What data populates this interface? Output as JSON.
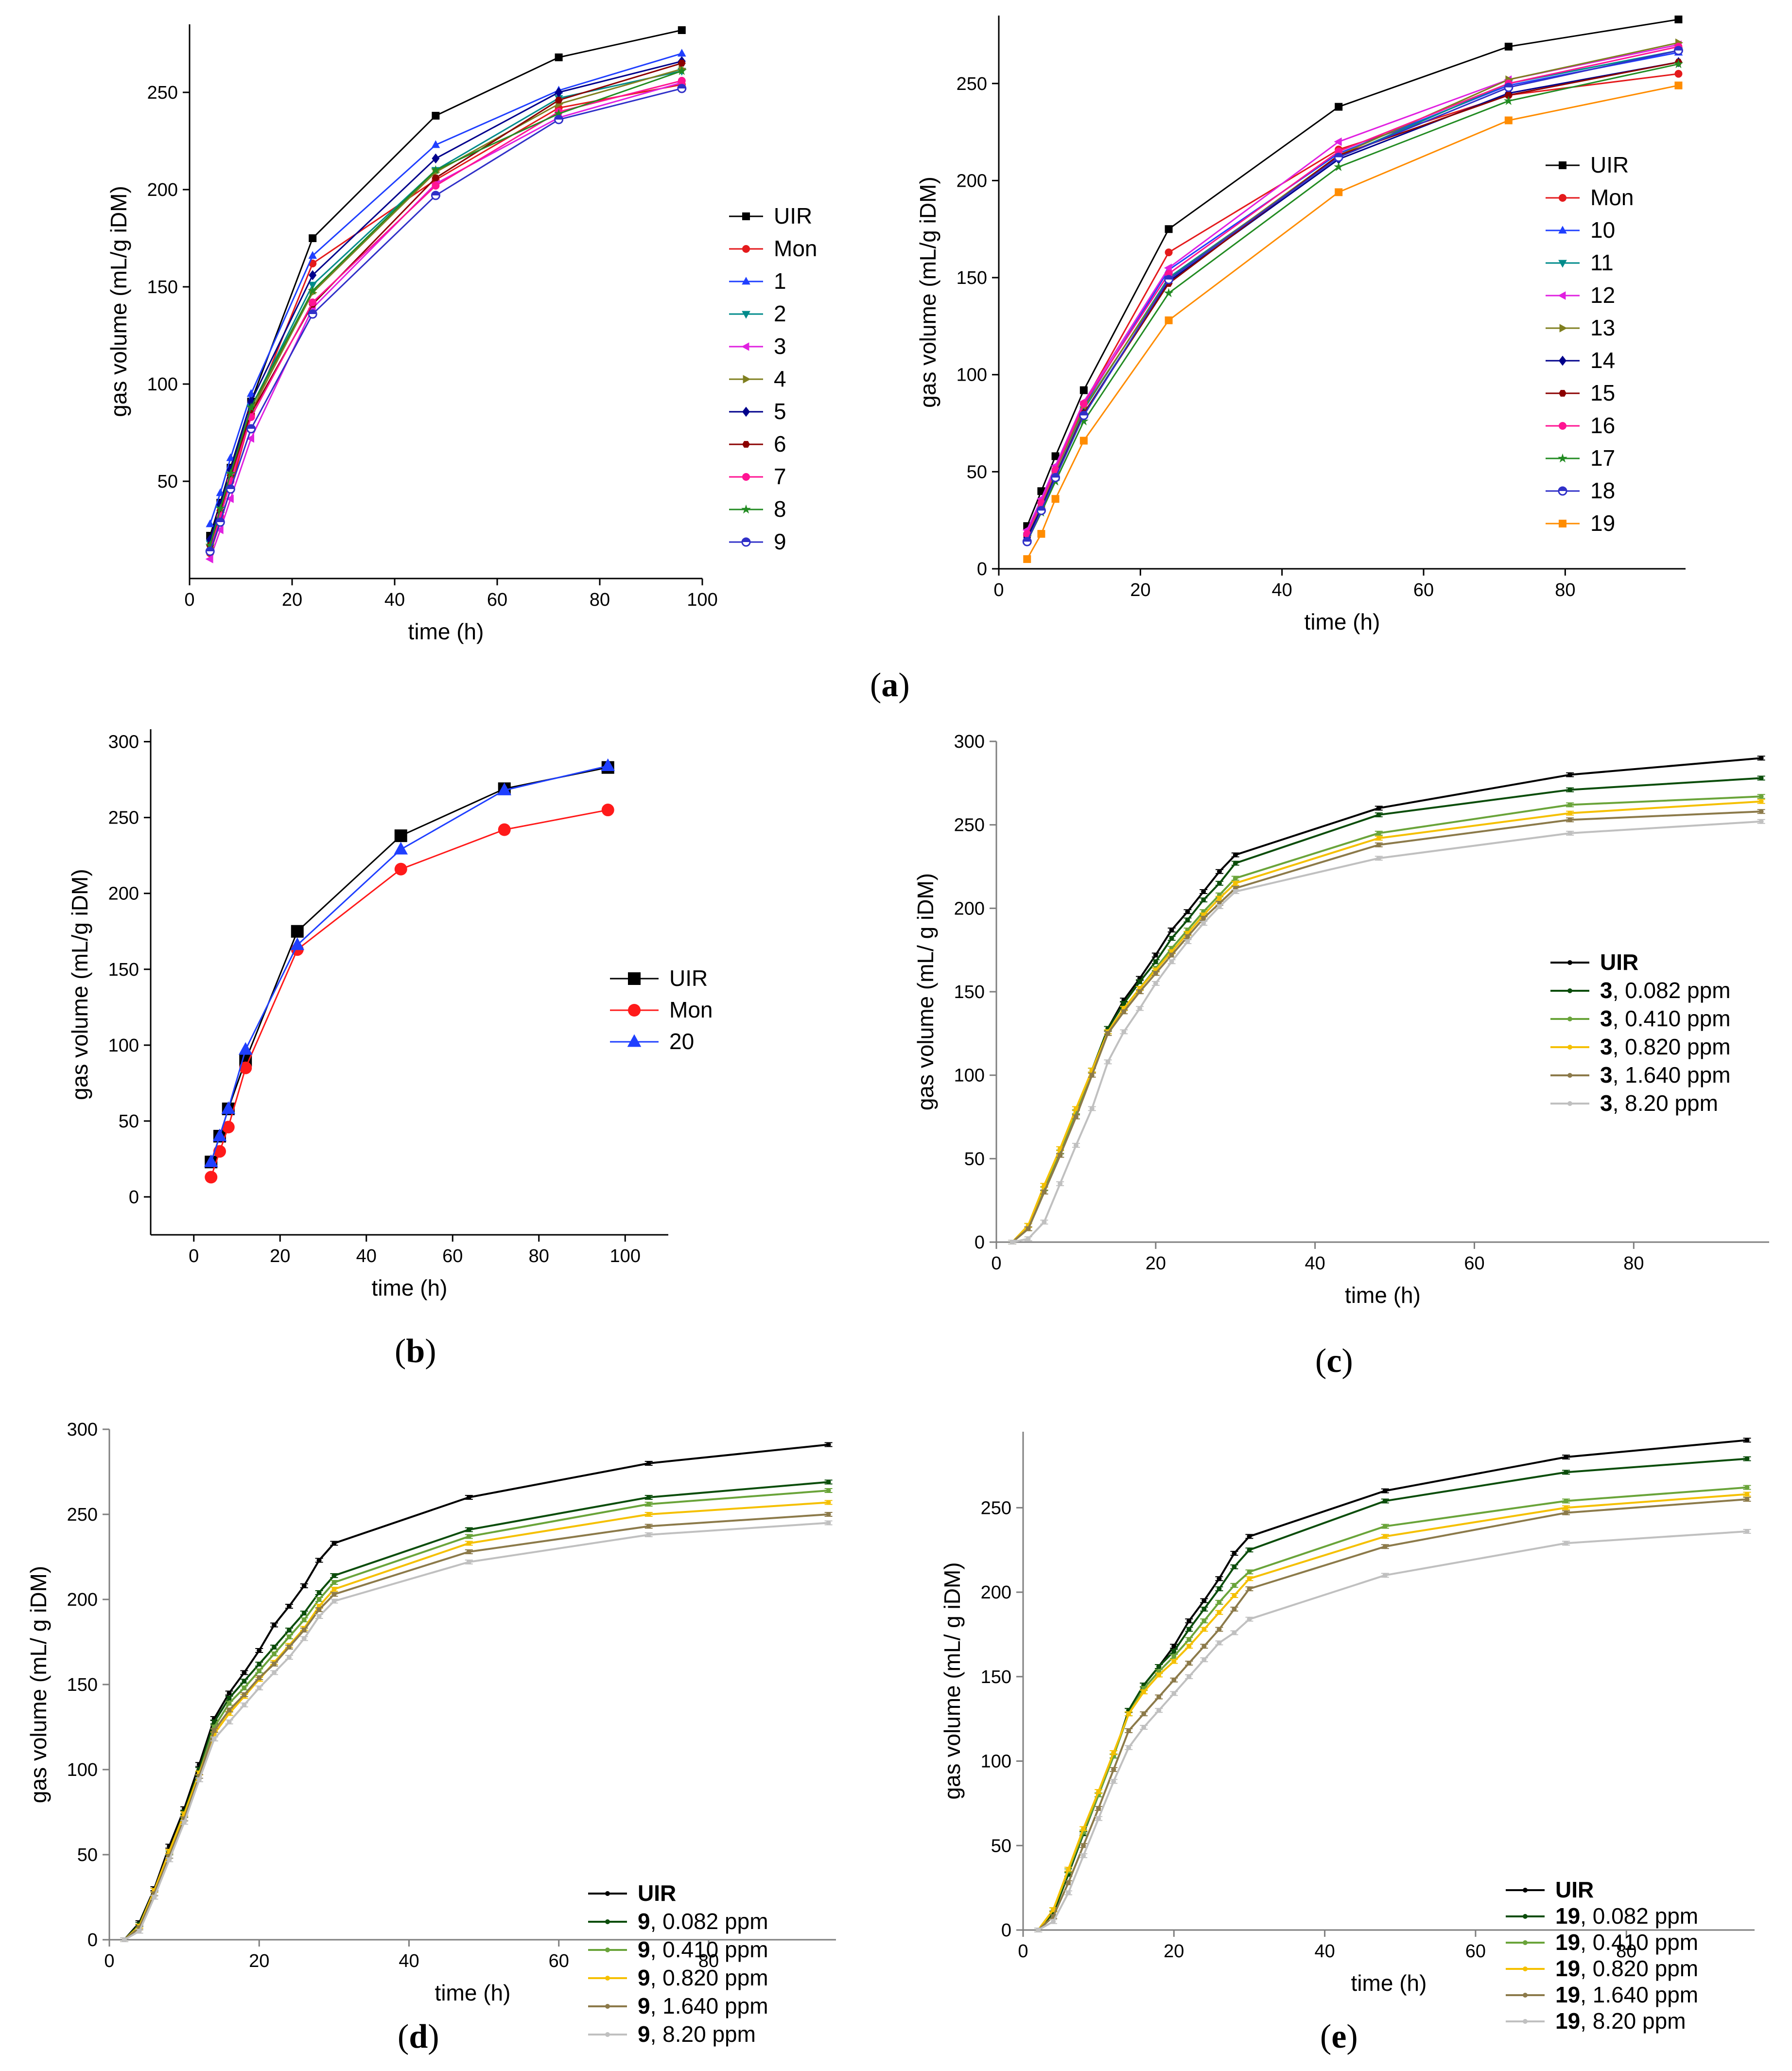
{
  "panel_labels": {
    "a": "a",
    "b": "b",
    "c": "c",
    "d": "d",
    "e": "e"
  },
  "chart_data": [
    {
      "id": "a_left",
      "panel": "a",
      "type": "line",
      "xlabel": "time (h)",
      "ylabel": "gas volume (mL/g iDM)",
      "xlim": [
        0,
        100
      ],
      "ylim": [
        0,
        285
      ],
      "xticks": [
        0,
        20,
        40,
        60,
        80,
        100
      ],
      "yticks": [
        50,
        100,
        150,
        200,
        250
      ],
      "x": [
        4,
        6,
        8,
        12,
        24,
        48,
        72,
        96
      ],
      "series": [
        {
          "name": "UIR",
          "color": "#000000",
          "marker": "square",
          "values": [
            22,
            39,
            57,
            91,
            175,
            238,
            268,
            282
          ]
        },
        {
          "name": "Mon",
          "color": "#e41a1c",
          "marker": "circle",
          "values": [
            13,
            29,
            46,
            84,
            162,
            205,
            242,
            254
          ]
        },
        {
          "name": "1",
          "color": "#1f3fff",
          "marker": "triangle-up",
          "values": [
            28,
            44,
            62,
            95,
            166,
            223,
            251,
            270
          ]
        },
        {
          "name": "2",
          "color": "#008b8b",
          "marker": "triangle-down",
          "values": [
            18,
            36,
            53,
            88,
            151,
            210,
            247,
            261
          ]
        },
        {
          "name": "3",
          "color": "#e020e0",
          "marker": "triangle-left",
          "values": [
            10,
            25,
            41,
            72,
            139,
            203,
            237,
            255
          ]
        },
        {
          "name": "4",
          "color": "#7f7f1f",
          "marker": "triangle-right",
          "values": [
            16,
            34,
            52,
            86,
            147,
            209,
            244,
            262
          ]
        },
        {
          "name": "5",
          "color": "#00008b",
          "marker": "diamond",
          "values": [
            20,
            38,
            56,
            91,
            156,
            216,
            250,
            266
          ]
        },
        {
          "name": "6",
          "color": "#8b0000",
          "marker": "hexagon",
          "values": [
            17,
            35,
            53,
            85,
            141,
            206,
            246,
            265
          ]
        },
        {
          "name": "7",
          "color": "#ff1493",
          "marker": "circle",
          "values": [
            14,
            32,
            50,
            83,
            142,
            202,
            240,
            256
          ]
        },
        {
          "name": "8",
          "color": "#228b22",
          "marker": "star",
          "values": [
            17,
            36,
            54,
            88,
            148,
            210,
            239,
            261
          ]
        },
        {
          "name": "9",
          "color": "#3030c8",
          "marker": "half-circle",
          "values": [
            14,
            29,
            46,
            77,
            136,
            197,
            236,
            252
          ]
        }
      ]
    },
    {
      "id": "a_right",
      "panel": "a",
      "type": "line",
      "xlabel": "time (h)",
      "ylabel": "gas volume (mL/g iDM)",
      "xlim": [
        0,
        97
      ],
      "ylim": [
        0,
        285
      ],
      "xticks": [
        0,
        20,
        40,
        60,
        80
      ],
      "yticks": [
        0,
        50,
        100,
        150,
        200,
        250
      ],
      "x": [
        4,
        6,
        8,
        12,
        24,
        48,
        72,
        96
      ],
      "series": [
        {
          "name": "UIR",
          "color": "#000000",
          "marker": "square",
          "values": [
            22,
            40,
            58,
            92,
            175,
            238,
            269,
            283
          ]
        },
        {
          "name": "Mon",
          "color": "#e41a1c",
          "marker": "circle",
          "values": [
            17,
            32,
            50,
            85,
            163,
            216,
            244,
            255
          ]
        },
        {
          "name": "10",
          "color": "#1f3fff",
          "marker": "triangle-up",
          "values": [
            19,
            35,
            52,
            84,
            154,
            214,
            249,
            266
          ]
        },
        {
          "name": "11",
          "color": "#008b8b",
          "marker": "triangle-down",
          "values": [
            17,
            33,
            50,
            82,
            150,
            212,
            250,
            267
          ]
        },
        {
          "name": "12",
          "color": "#e020e0",
          "marker": "triangle-left",
          "values": [
            20,
            36,
            53,
            86,
            155,
            220,
            252,
            270
          ]
        },
        {
          "name": "13",
          "color": "#7f7f1f",
          "marker": "triangle-right",
          "values": [
            17,
            33,
            50,
            83,
            149,
            213,
            252,
            271
          ]
        },
        {
          "name": "14",
          "color": "#00008b",
          "marker": "diamond",
          "values": [
            16,
            31,
            48,
            80,
            148,
            211,
            245,
            261
          ]
        },
        {
          "name": "15",
          "color": "#8b0000",
          "marker": "hexagon",
          "values": [
            14,
            30,
            47,
            80,
            147,
            213,
            244,
            261
          ]
        },
        {
          "name": "16",
          "color": "#ff1493",
          "marker": "circle",
          "values": [
            18,
            34,
            51,
            85,
            152,
            215,
            250,
            269
          ]
        },
        {
          "name": "17",
          "color": "#228b22",
          "marker": "star",
          "values": [
            14,
            29,
            45,
            76,
            142,
            207,
            241,
            260
          ]
        },
        {
          "name": "18",
          "color": "#3030c8",
          "marker": "half-circle",
          "values": [
            14,
            30,
            47,
            79,
            149,
            212,
            248,
            267
          ]
        },
        {
          "name": "19",
          "color": "#ff8c00",
          "marker": "square",
          "values": [
            5,
            18,
            36,
            66,
            128,
            194,
            231,
            249
          ]
        }
      ]
    },
    {
      "id": "b",
      "panel": "b",
      "type": "line",
      "xlabel": "time (h)",
      "ylabel": "gas volume (mL/g iDM)",
      "xlim": [
        -10,
        110
      ],
      "ylim": [
        -25,
        305
      ],
      "xticks": [
        0,
        20,
        40,
        60,
        80,
        100
      ],
      "yticks": [
        0,
        50,
        100,
        150,
        200,
        250,
        300
      ],
      "x": [
        4,
        6,
        8,
        12,
        24,
        48,
        72,
        96
      ],
      "series": [
        {
          "name": "UIR",
          "color": "#000000",
          "marker": "square",
          "values": [
            23,
            40,
            58,
            90,
            175,
            238,
            269,
            283
          ]
        },
        {
          "name": "Mon",
          "color": "#ff1a1a",
          "marker": "circle",
          "values": [
            13,
            30,
            46,
            85,
            163,
            216,
            242,
            255
          ]
        },
        {
          "name": "20",
          "color": "#1f3fff",
          "marker": "triangle-up",
          "values": [
            23,
            40,
            58,
            97,
            166,
            229,
            268,
            284
          ]
        }
      ]
    },
    {
      "id": "c",
      "panel": "c",
      "type": "line",
      "xlabel": "time (h)",
      "ylabel": "gas volume (mL/ g iDM)",
      "xlim": [
        0,
        97
      ],
      "ylim": [
        0,
        300
      ],
      "xticks": [
        0,
        20,
        40,
        60,
        80
      ],
      "yticks": [
        0,
        50,
        100,
        150,
        200,
        250,
        300
      ],
      "x": [
        2,
        4,
        6,
        8,
        10,
        12,
        14,
        16,
        18,
        20,
        22,
        24,
        26,
        28,
        30,
        48,
        72,
        96
      ],
      "series": [
        {
          "name": "UIR",
          "bold": "UIR",
          "rest": "",
          "color": "#000000",
          "values": [
            0,
            8,
            30,
            52,
            78,
            103,
            128,
            145,
            158,
            172,
            187,
            198,
            210,
            222,
            232,
            260,
            280,
            290
          ]
        },
        {
          "name": "3, 0.082 ppm",
          "bold": "3",
          "rest": ", 0.082 ppm",
          "color": "#0b4d0b",
          "values": [
            0,
            8,
            30,
            52,
            78,
            103,
            128,
            143,
            156,
            168,
            182,
            193,
            205,
            215,
            227,
            256,
            271,
            278
          ]
        },
        {
          "name": "3, 0.410 ppm",
          "bold": "3",
          "rest": ", 0.410 ppm",
          "color": "#6aa43a",
          "values": [
            0,
            10,
            32,
            54,
            78,
            103,
            126,
            140,
            152,
            164,
            176,
            187,
            198,
            208,
            218,
            245,
            262,
            267
          ]
        },
        {
          "name": "3, 0.820 ppm",
          "bold": "3",
          "rest": ", 0.820 ppm",
          "color": "#f5c000",
          "values": [
            0,
            10,
            34,
            56,
            80,
            103,
            126,
            140,
            152,
            163,
            174,
            185,
            196,
            206,
            215,
            242,
            257,
            264
          ]
        },
        {
          "name": "3, 1.640 ppm",
          "bold": "3",
          "rest": ", 1.640 ppm",
          "color": "#8c7a4a",
          "values": [
            0,
            8,
            30,
            52,
            75,
            100,
            125,
            138,
            150,
            161,
            172,
            183,
            194,
            203,
            212,
            238,
            253,
            258
          ]
        },
        {
          "name": "3,  8.20  ppm",
          "bold": "3",
          "rest": ",  8.20  ppm",
          "color": "#c0c0c0",
          "values": [
            0,
            2,
            12,
            35,
            58,
            80,
            108,
            126,
            140,
            155,
            168,
            180,
            191,
            201,
            210,
            230,
            245,
            252
          ]
        }
      ]
    },
    {
      "id": "d",
      "panel": "d",
      "type": "line",
      "xlabel": "time (h)",
      "ylabel": "gas volume (mL/ g iDM)",
      "xlim": [
        0,
        97
      ],
      "ylim": [
        0,
        300
      ],
      "xticks": [
        0,
        20,
        40,
        60,
        80
      ],
      "yticks": [
        0,
        50,
        100,
        150,
        200,
        250,
        300
      ],
      "x": [
        2,
        4,
        6,
        8,
        10,
        12,
        14,
        16,
        18,
        20,
        22,
        24,
        26,
        28,
        30,
        48,
        72,
        96
      ],
      "series": [
        {
          "name": "UIR",
          "bold": "UIR",
          "rest": "",
          "color": "#000000",
          "values": [
            0,
            10,
            30,
            55,
            77,
            103,
            130,
            145,
            157,
            170,
            185,
            196,
            208,
            223,
            233,
            260,
            280,
            291
          ]
        },
        {
          "name": "9, 0.082 ppm",
          "bold": "9",
          "rest": ", 0.082 ppm",
          "color": "#0b4d0b",
          "values": [
            0,
            9,
            29,
            52,
            75,
            100,
            128,
            142,
            152,
            162,
            172,
            182,
            192,
            204,
            214,
            241,
            260,
            269
          ]
        },
        {
          "name": "9, 0.410 ppm",
          "bold": "9",
          "rest": ", 0.410 ppm",
          "color": "#6aa43a",
          "values": [
            0,
            8,
            29,
            51,
            73,
            98,
            125,
            139,
            148,
            158,
            168,
            178,
            188,
            200,
            210,
            237,
            256,
            264
          ]
        },
        {
          "name": "9, 0.820 ppm",
          "bold": "9",
          "rest": ", 0.820 ppm",
          "color": "#f5c000",
          "values": [
            0,
            8,
            29,
            52,
            74,
            98,
            121,
            133,
            143,
            153,
            163,
            173,
            183,
            196,
            206,
            233,
            250,
            257
          ]
        },
        {
          "name": "9, 1.640 ppm",
          "bold": "9",
          "rest": ", 1.640 ppm",
          "color": "#8c7a4a",
          "values": [
            0,
            7,
            27,
            49,
            71,
            96,
            123,
            135,
            144,
            154,
            162,
            172,
            182,
            194,
            203,
            228,
            243,
            250
          ]
        },
        {
          "name": "9,  8.20  ppm",
          "bold": "9",
          "rest": ",  8.20  ppm",
          "color": "#c0c0c0",
          "values": [
            0,
            5,
            25,
            47,
            69,
            94,
            118,
            128,
            138,
            148,
            157,
            166,
            177,
            190,
            199,
            222,
            238,
            245
          ]
        }
      ]
    },
    {
      "id": "e",
      "panel": "e",
      "type": "line",
      "xlabel": "time (h)",
      "ylabel": "gas volume (mL/ g iDM)",
      "xlim": [
        0,
        97
      ],
      "ylim": [
        0,
        295
      ],
      "xticks": [
        0,
        20,
        40,
        60,
        80
      ],
      "yticks": [
        0,
        50,
        100,
        150,
        200,
        250
      ],
      "x": [
        2,
        4,
        6,
        8,
        10,
        12,
        14,
        16,
        18,
        20,
        22,
        24,
        26,
        28,
        30,
        48,
        72,
        96
      ],
      "series": [
        {
          "name": "UIR",
          "bold": "UIR",
          "rest": "",
          "color": "#000000",
          "values": [
            0,
            10,
            33,
            57,
            80,
            103,
            130,
            145,
            156,
            168,
            183,
            195,
            208,
            223,
            233,
            260,
            280,
            290
          ]
        },
        {
          "name": "19, 0.082 ppm",
          "bold": "19",
          "rest": ", 0.082 ppm",
          "color": "#0b4d0b",
          "values": [
            0,
            10,
            33,
            57,
            80,
            103,
            130,
            145,
            156,
            165,
            178,
            190,
            202,
            215,
            225,
            254,
            271,
            279
          ]
        },
        {
          "name": "19, 0.410 ppm",
          "bold": "19",
          "rest": ", 0.410 ppm",
          "color": "#6aa43a",
          "values": [
            0,
            12,
            35,
            58,
            80,
            103,
            128,
            143,
            153,
            162,
            172,
            183,
            194,
            204,
            212,
            239,
            254,
            262
          ]
        },
        {
          "name": "19, 0.820 ppm",
          "bold": "19",
          "rest": ", 0.820 ppm",
          "color": "#f5c000",
          "values": [
            0,
            12,
            36,
            60,
            82,
            105,
            128,
            141,
            151,
            159,
            168,
            178,
            188,
            198,
            208,
            233,
            250,
            258
          ]
        },
        {
          "name": "19, 1.640 ppm",
          "bold": "19",
          "rest": ", 1.640 ppm",
          "color": "#8c7a4a",
          "values": [
            0,
            8,
            28,
            50,
            72,
            95,
            118,
            128,
            138,
            148,
            158,
            168,
            178,
            190,
            202,
            227,
            247,
            255
          ]
        },
        {
          "name": "19,  8.20  ppm",
          "bold": "19",
          "rest": ",  8.20  ppm",
          "color": "#c0c0c0",
          "values": [
            0,
            5,
            22,
            44,
            66,
            88,
            108,
            120,
            130,
            140,
            150,
            160,
            170,
            176,
            184,
            210,
            229,
            236
          ]
        }
      ]
    }
  ]
}
